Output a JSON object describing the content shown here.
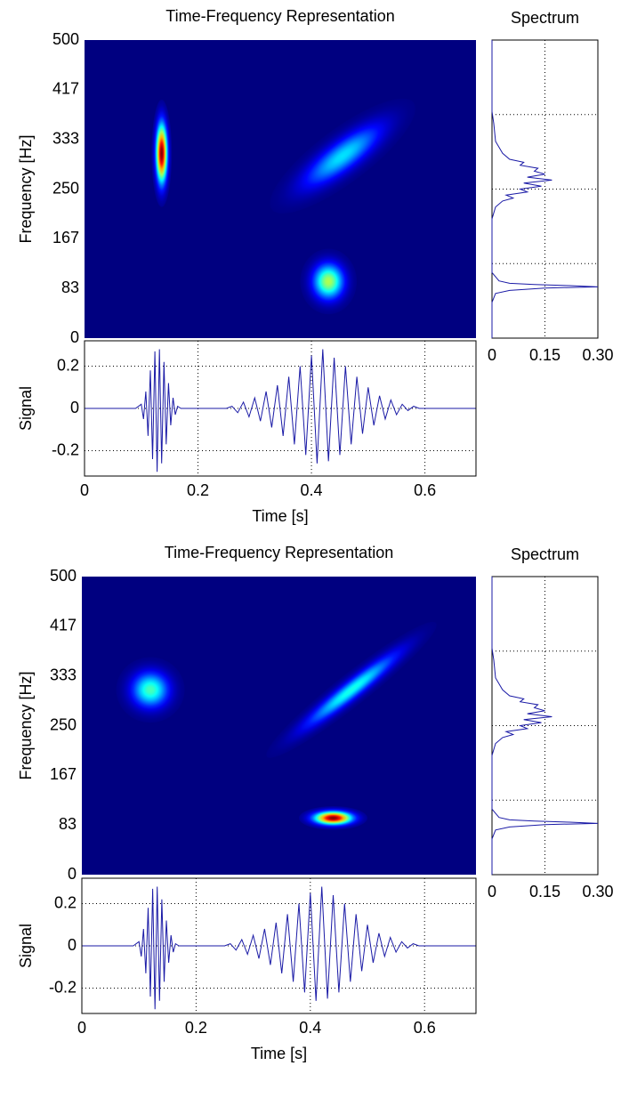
{
  "chart_data": [
    {
      "type": "heatmap",
      "title": "Time-Frequency Representation",
      "y_label": "Frequency [Hz]",
      "xlim": [
        0,
        0.69
      ],
      "ylim": [
        0,
        500
      ],
      "yticks": [
        0,
        83,
        167,
        250,
        333,
        417,
        500
      ],
      "components": [
        {
          "t": 0.136,
          "f": 310,
          "t_width": 0.018,
          "f_width": 90,
          "peak": 1.0
        },
        {
          "t": [
            0.33,
            0.58
          ],
          "f": [
            216,
            395
          ],
          "f_width": 45,
          "peak": 0.35
        },
        {
          "t": 0.43,
          "f": 95,
          "t_width": 0.05,
          "f_width": 55,
          "peak": 0.55
        }
      ]
    },
    {
      "type": "spectrum",
      "title": "Spectrum",
      "color": "#1a1aa6",
      "xlim": [
        0,
        0.3
      ],
      "ylim": [
        0,
        500
      ],
      "xticks": [
        0,
        0.15,
        {
          "value": 0.3,
          "label": "0.30"
        }
      ],
      "ygrid": [
        125,
        250,
        375
      ],
      "frequencies": [
        0,
        60,
        75,
        80,
        84,
        86,
        88,
        90,
        92,
        96,
        110,
        200,
        220,
        230,
        235,
        240,
        245,
        250,
        255,
        260,
        265,
        270,
        275,
        280,
        285,
        290,
        295,
        300,
        310,
        330,
        360,
        380,
        500
      ],
      "values": [
        0,
        0,
        0.01,
        0.05,
        0.15,
        0.3,
        0.22,
        0.12,
        0.05,
        0.02,
        0,
        0,
        0.01,
        0.03,
        0.06,
        0.04,
        0.1,
        0.08,
        0.14,
        0.09,
        0.17,
        0.1,
        0.15,
        0.12,
        0.13,
        0.08,
        0.09,
        0.05,
        0.03,
        0.01,
        0.005,
        0,
        0
      ]
    },
    {
      "type": "line",
      "x_label": "Time [s]",
      "y_label": "Signal",
      "color": "#1a1aa6",
      "xlim": [
        0,
        0.69
      ],
      "ylim": [
        -0.32,
        0.32
      ],
      "xticks": [
        0,
        0.2,
        0.4,
        0.6
      ],
      "yticks": [
        -0.2,
        0,
        0.2
      ],
      "x": [
        0,
        0.09,
        0.1,
        0.104,
        0.108,
        0.112,
        0.116,
        0.12,
        0.124,
        0.128,
        0.132,
        0.136,
        0.14,
        0.144,
        0.148,
        0.152,
        0.156,
        0.16,
        0.164,
        0.17,
        0.25,
        0.26,
        0.27,
        0.28,
        0.29,
        0.3,
        0.31,
        0.32,
        0.33,
        0.34,
        0.35,
        0.36,
        0.37,
        0.38,
        0.39,
        0.4,
        0.41,
        0.42,
        0.43,
        0.44,
        0.45,
        0.46,
        0.47,
        0.48,
        0.49,
        0.5,
        0.51,
        0.52,
        0.53,
        0.54,
        0.55,
        0.56,
        0.57,
        0.58,
        0.59,
        0.6,
        0.69
      ],
      "values": [
        0,
        0,
        0.02,
        -0.05,
        0.08,
        -0.13,
        0.18,
        -0.24,
        0.27,
        -0.3,
        0.28,
        -0.26,
        0.22,
        -0.17,
        0.12,
        -0.08,
        0.05,
        -0.03,
        0.01,
        0,
        0,
        0.01,
        -0.02,
        0.03,
        -0.04,
        0.05,
        -0.06,
        0.08,
        -0.09,
        0.11,
        -0.13,
        0.15,
        -0.17,
        0.2,
        -0.22,
        0.25,
        -0.26,
        0.28,
        -0.25,
        0.24,
        -0.22,
        0.2,
        -0.17,
        0.15,
        -0.12,
        0.1,
        -0.08,
        0.06,
        -0.05,
        0.04,
        -0.03,
        0.02,
        -0.01,
        0.01,
        0,
        0,
        0
      ]
    },
    {
      "type": "heatmap",
      "title": "Time-Frequency Representation",
      "y_label": "Frequency [Hz]",
      "xlim": [
        0,
        0.69
      ],
      "ylim": [
        0,
        500
      ],
      "yticks": [
        0,
        83,
        167,
        250,
        333,
        417,
        500
      ],
      "components": [
        {
          "t": 0.12,
          "f": 310,
          "t_width": 0.06,
          "f_width": 55,
          "peak": 0.45
        },
        {
          "t": [
            0.324,
            0.62
          ],
          "f": [
            198,
            422
          ],
          "f_width": 27,
          "peak": 0.4
        },
        {
          "t": 0.44,
          "f": 95,
          "t_width": 0.06,
          "f_width": 20,
          "peak": 1.0
        }
      ]
    },
    {
      "type": "spectrum",
      "title": "Spectrum",
      "color": "#1a1aa6",
      "xlim": [
        0,
        0.3
      ],
      "ylim": [
        0,
        500
      ],
      "xticks": [
        0,
        0.15,
        {
          "value": 0.3,
          "label": "0.30"
        }
      ],
      "ygrid": [
        125,
        250,
        375
      ],
      "frequencies": [
        0,
        60,
        75,
        80,
        84,
        86,
        88,
        90,
        92,
        96,
        110,
        200,
        220,
        230,
        235,
        240,
        245,
        250,
        255,
        260,
        265,
        270,
        275,
        280,
        285,
        290,
        295,
        300,
        310,
        330,
        360,
        380,
        500
      ],
      "values": [
        0,
        0,
        0.01,
        0.05,
        0.15,
        0.3,
        0.22,
        0.12,
        0.05,
        0.02,
        0,
        0,
        0.01,
        0.03,
        0.06,
        0.04,
        0.1,
        0.08,
        0.14,
        0.09,
        0.17,
        0.1,
        0.15,
        0.12,
        0.13,
        0.08,
        0.09,
        0.05,
        0.03,
        0.01,
        0.005,
        0,
        0
      ]
    },
    {
      "type": "line",
      "x_label": "Time [s]",
      "y_label": "Signal",
      "color": "#1a1aa6",
      "xlim": [
        0,
        0.69
      ],
      "ylim": [
        -0.32,
        0.32
      ],
      "xticks": [
        0,
        0.2,
        0.4,
        0.6
      ],
      "yticks": [
        -0.2,
        0,
        0.2
      ],
      "x": [
        0,
        0.09,
        0.1,
        0.104,
        0.108,
        0.112,
        0.116,
        0.12,
        0.124,
        0.128,
        0.132,
        0.136,
        0.14,
        0.144,
        0.148,
        0.152,
        0.156,
        0.16,
        0.164,
        0.17,
        0.25,
        0.26,
        0.27,
        0.28,
        0.29,
        0.3,
        0.31,
        0.32,
        0.33,
        0.34,
        0.35,
        0.36,
        0.37,
        0.38,
        0.39,
        0.4,
        0.41,
        0.42,
        0.43,
        0.44,
        0.45,
        0.46,
        0.47,
        0.48,
        0.49,
        0.5,
        0.51,
        0.52,
        0.53,
        0.54,
        0.55,
        0.56,
        0.57,
        0.58,
        0.59,
        0.6,
        0.69
      ],
      "values": [
        0,
        0,
        0.02,
        -0.05,
        0.08,
        -0.13,
        0.18,
        -0.24,
        0.27,
        -0.3,
        0.28,
        -0.26,
        0.22,
        -0.17,
        0.12,
        -0.08,
        0.05,
        -0.03,
        0.01,
        0,
        0,
        0.01,
        -0.02,
        0.03,
        -0.04,
        0.05,
        -0.06,
        0.08,
        -0.09,
        0.11,
        -0.13,
        0.15,
        -0.17,
        0.2,
        -0.22,
        0.25,
        -0.26,
        0.28,
        -0.25,
        0.24,
        -0.22,
        0.2,
        -0.17,
        0.15,
        -0.12,
        0.1,
        -0.08,
        0.06,
        -0.05,
        0.04,
        -0.03,
        0.02,
        -0.01,
        0.01,
        0,
        0,
        0
      ]
    }
  ]
}
